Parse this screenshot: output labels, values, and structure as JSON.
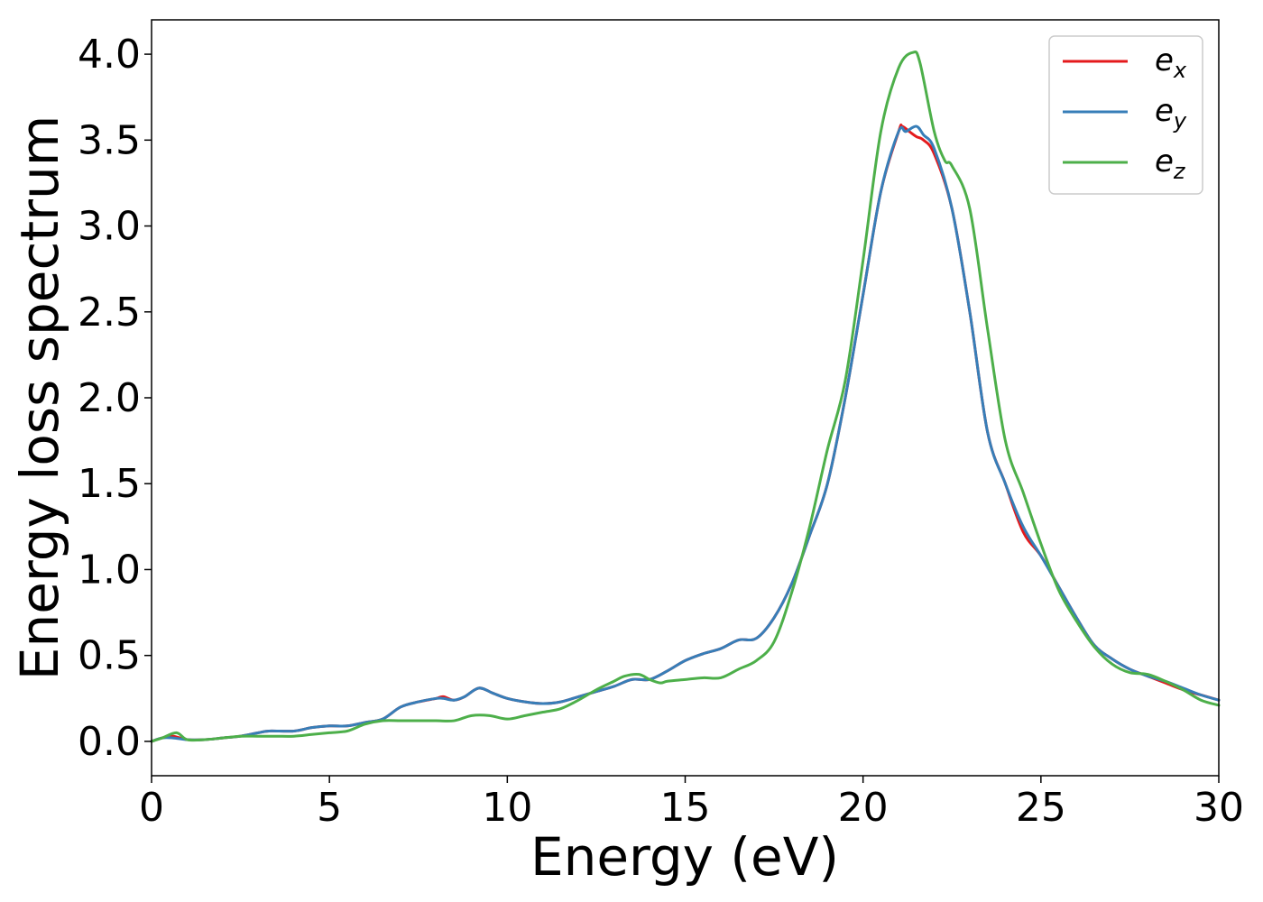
{
  "chart_data": {
    "type": "line",
    "title": "",
    "xlabel": "Energy (eV)",
    "ylabel": "Energy loss spectrum",
    "xlim": [
      0,
      30
    ],
    "ylim": [
      -0.2,
      4.2
    ],
    "xticks": [
      0,
      5,
      10,
      15,
      20,
      25,
      30
    ],
    "xtick_labels": [
      "0",
      "5",
      "10",
      "15",
      "20",
      "25",
      "30"
    ],
    "yticks": [
      0.0,
      0.5,
      1.0,
      1.5,
      2.0,
      2.5,
      3.0,
      3.5,
      4.0
    ],
    "ytick_labels": [
      "0.0",
      "0.5",
      "1.0",
      "1.5",
      "2.0",
      "2.5",
      "3.0",
      "3.5",
      "4.0"
    ],
    "grid": false,
    "legend_position": "top-right",
    "series": [
      {
        "name": "e_x",
        "legend_base": "e",
        "legend_sub": "x",
        "color": "#e41a1c",
        "x": [
          0,
          0.3,
          0.6,
          1.0,
          1.5,
          2.0,
          2.5,
          3.0,
          3.3,
          4.0,
          4.5,
          5.0,
          5.5,
          6.0,
          6.5,
          7.0,
          7.5,
          8.0,
          8.2,
          8.5,
          8.8,
          9.2,
          9.6,
          10.0,
          10.5,
          11.0,
          11.5,
          12.0,
          12.5,
          13.0,
          13.5,
          14.0,
          14.5,
          15.0,
          15.5,
          16.0,
          16.5,
          17.0,
          17.5,
          18.0,
          18.5,
          19.0,
          19.5,
          20.0,
          20.5,
          21.0,
          21.1,
          21.3,
          21.5,
          21.7,
          22.0,
          22.5,
          23.0,
          23.5,
          24.0,
          24.5,
          25.0,
          25.5,
          26.0,
          26.5,
          27.0,
          27.5,
          28.0,
          28.5,
          29.0,
          29.5,
          30.0
        ],
        "y": [
          0.0,
          0.02,
          0.03,
          0.01,
          0.01,
          0.02,
          0.03,
          0.05,
          0.06,
          0.06,
          0.08,
          0.09,
          0.09,
          0.11,
          0.13,
          0.2,
          0.23,
          0.25,
          0.26,
          0.24,
          0.26,
          0.31,
          0.28,
          0.25,
          0.23,
          0.22,
          0.23,
          0.26,
          0.29,
          0.32,
          0.36,
          0.36,
          0.41,
          0.47,
          0.51,
          0.54,
          0.59,
          0.6,
          0.72,
          0.92,
          1.2,
          1.5,
          2.0,
          2.6,
          3.2,
          3.55,
          3.58,
          3.55,
          3.52,
          3.5,
          3.42,
          3.1,
          2.5,
          1.8,
          1.5,
          1.22,
          1.08,
          0.9,
          0.72,
          0.56,
          0.48,
          0.42,
          0.38,
          0.34,
          0.3,
          0.27,
          0.24
        ]
      },
      {
        "name": "e_y",
        "legend_base": "e",
        "legend_sub": "y",
        "color": "#377eb8",
        "x": [
          0,
          0.3,
          0.6,
          1.0,
          1.5,
          2.0,
          2.5,
          3.0,
          3.3,
          4.0,
          4.5,
          5.0,
          5.5,
          6.0,
          6.5,
          7.0,
          7.5,
          8.0,
          8.2,
          8.5,
          8.8,
          9.2,
          9.6,
          10.0,
          10.5,
          11.0,
          11.5,
          12.0,
          12.5,
          13.0,
          13.5,
          14.0,
          14.5,
          15.0,
          15.5,
          16.0,
          16.5,
          17.0,
          17.5,
          18.0,
          18.5,
          19.0,
          19.5,
          20.0,
          20.5,
          21.0,
          21.2,
          21.5,
          21.7,
          22.0,
          22.5,
          23.0,
          23.5,
          24.0,
          24.5,
          25.0,
          25.5,
          26.0,
          26.5,
          27.0,
          27.5,
          28.0,
          28.5,
          29.0,
          29.5,
          30.0
        ],
        "y": [
          0.0,
          0.02,
          0.02,
          0.01,
          0.01,
          0.02,
          0.03,
          0.05,
          0.06,
          0.06,
          0.08,
          0.09,
          0.09,
          0.11,
          0.13,
          0.2,
          0.23,
          0.25,
          0.25,
          0.24,
          0.26,
          0.31,
          0.28,
          0.25,
          0.23,
          0.22,
          0.23,
          0.26,
          0.29,
          0.32,
          0.36,
          0.36,
          0.41,
          0.47,
          0.51,
          0.54,
          0.59,
          0.6,
          0.72,
          0.92,
          1.2,
          1.5,
          2.0,
          2.6,
          3.2,
          3.55,
          3.55,
          3.58,
          3.53,
          3.45,
          3.1,
          2.5,
          1.8,
          1.5,
          1.25,
          1.08,
          0.9,
          0.72,
          0.56,
          0.48,
          0.42,
          0.38,
          0.35,
          0.31,
          0.27,
          0.24
        ]
      },
      {
        "name": "e_z",
        "legend_base": "e",
        "legend_sub": "z",
        "color": "#4daf4a",
        "x": [
          0,
          0.3,
          0.7,
          1.0,
          1.5,
          2.0,
          2.5,
          3.0,
          3.5,
          4.0,
          4.5,
          5.0,
          5.5,
          6.0,
          6.5,
          7.0,
          7.5,
          8.0,
          8.5,
          9.0,
          9.5,
          10.0,
          10.5,
          11.0,
          11.5,
          12.0,
          12.5,
          13.0,
          13.3,
          13.7,
          14.0,
          14.3,
          14.5,
          15.0,
          15.5,
          16.0,
          16.5,
          17.0,
          17.5,
          18.0,
          18.5,
          19.0,
          19.5,
          20.0,
          20.5,
          21.0,
          21.4,
          21.6,
          22.0,
          22.3,
          22.5,
          23.0,
          23.5,
          24.0,
          24.5,
          25.0,
          25.5,
          26.0,
          26.5,
          27.0,
          27.5,
          28.0,
          28.5,
          29.0,
          29.5,
          30.0
        ],
        "y": [
          0.0,
          0.02,
          0.05,
          0.01,
          0.01,
          0.02,
          0.03,
          0.03,
          0.03,
          0.03,
          0.04,
          0.05,
          0.06,
          0.1,
          0.12,
          0.12,
          0.12,
          0.12,
          0.12,
          0.15,
          0.15,
          0.13,
          0.15,
          0.17,
          0.19,
          0.24,
          0.3,
          0.35,
          0.38,
          0.39,
          0.36,
          0.34,
          0.35,
          0.36,
          0.37,
          0.37,
          0.42,
          0.47,
          0.58,
          0.87,
          1.25,
          1.7,
          2.1,
          2.8,
          3.55,
          3.92,
          4.01,
          3.95,
          3.55,
          3.38,
          3.35,
          3.1,
          2.4,
          1.75,
          1.45,
          1.15,
          0.88,
          0.7,
          0.55,
          0.45,
          0.4,
          0.39,
          0.35,
          0.3,
          0.24,
          0.21
        ]
      }
    ]
  }
}
